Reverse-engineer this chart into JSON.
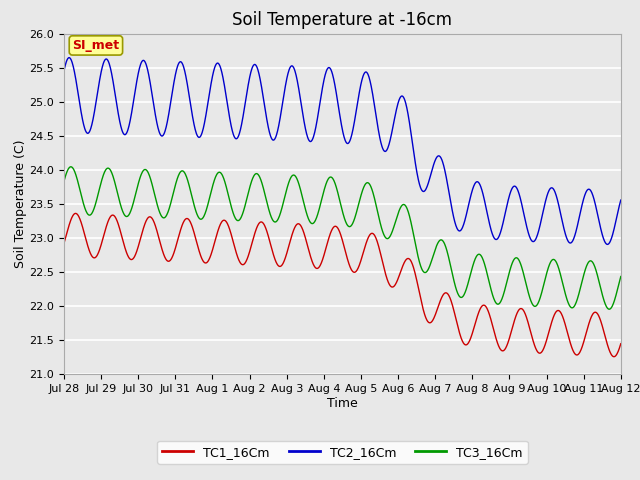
{
  "title": "Soil Temperature at -16cm",
  "xlabel": "Time",
  "ylabel": "Soil Temperature (C)",
  "ylim": [
    21.0,
    26.0
  ],
  "yticks": [
    21.0,
    21.5,
    22.0,
    22.5,
    23.0,
    23.5,
    24.0,
    24.5,
    25.0,
    25.5,
    26.0
  ],
  "xtick_labels": [
    "Jul 28",
    "Jul 29",
    "Jul 30",
    "Jul 31",
    "Aug 1",
    "Aug 2",
    "Aug 3",
    "Aug 4",
    "Aug 5",
    "Aug 6",
    "Aug 7",
    "Aug 8",
    "Aug 9",
    "Aug 10",
    "Aug 11",
    "Aug 12"
  ],
  "colors": {
    "TC1": "#cc0000",
    "TC2": "#0000cc",
    "TC3": "#009900"
  },
  "legend_labels": [
    "TC1_16Cm",
    "TC2_16Cm",
    "TC3_16Cm"
  ],
  "annotation_text": "SI_met",
  "annotation_facecolor": "#ffff99",
  "annotation_edgecolor": "#999900",
  "annotation_textcolor": "#cc0000",
  "bg_color": "#e8e8e8",
  "grid_color": "#ffffff",
  "title_fontsize": 12,
  "axis_label_fontsize": 9,
  "tick_fontsize": 8
}
